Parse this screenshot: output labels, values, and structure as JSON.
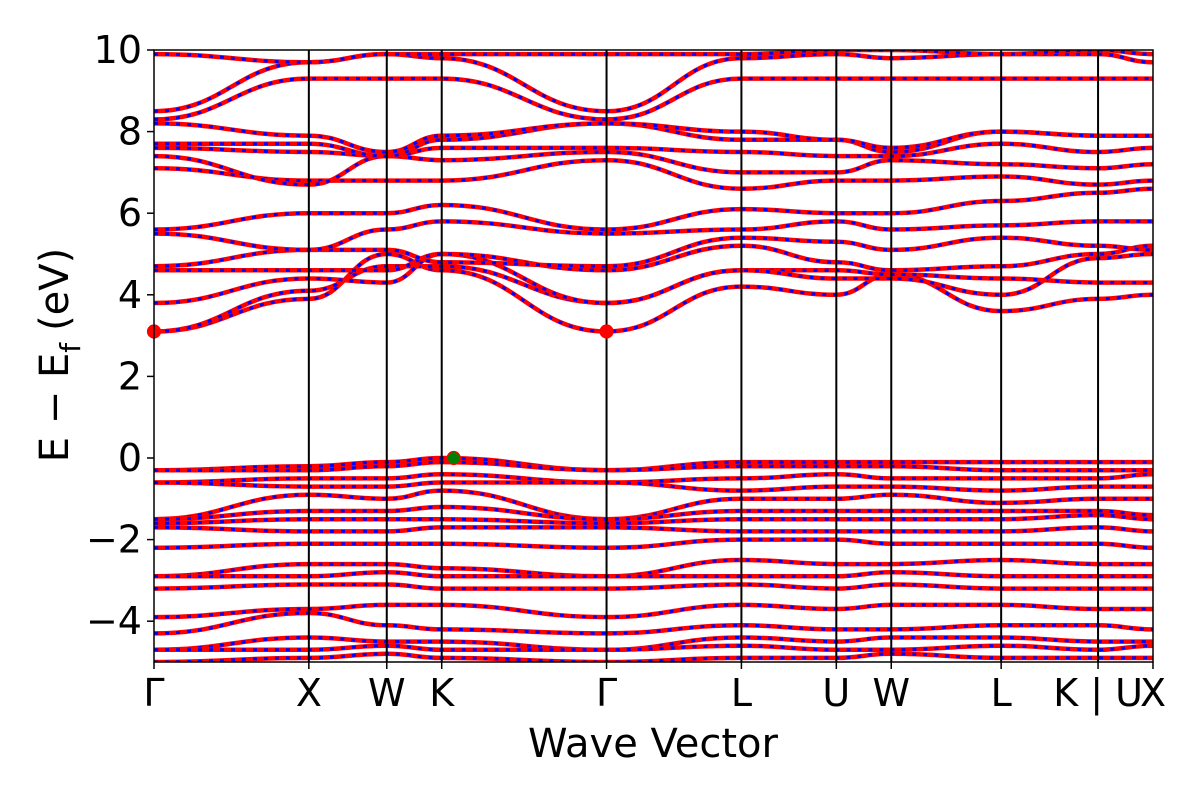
{
  "chart_data": {
    "type": "line",
    "title": "",
    "xlabel": "Wave Vector",
    "ylabel": "E − E",
    "ylabel_subscript": "f",
    "ylabel_unit": "(eV)",
    "ylim": [
      -5,
      10
    ],
    "yticks": [
      10,
      8,
      6,
      4,
      2,
      0,
      -2,
      -4
    ],
    "ytick_labels": [
      "10",
      "8",
      "6",
      "4",
      "2",
      "0",
      "−2",
      "−4"
    ],
    "xlim": [
      0,
      10
    ],
    "kpoints": [
      {
        "label": "Γ",
        "x": 0.0
      },
      {
        "label": "X",
        "x": 1.55
      },
      {
        "label": "W",
        "x": 2.33
      },
      {
        "label": "K",
        "x": 2.88
      },
      {
        "label": "Γ",
        "x": 4.53
      },
      {
        "label": "L",
        "x": 5.88
      },
      {
        "label": "U",
        "x": 6.83
      },
      {
        "label": "W",
        "x": 7.38
      },
      {
        "label": "L",
        "x": 8.48
      },
      {
        "label": "K | U",
        "x": 9.45
      },
      {
        "label": "X",
        "x": 10.0
      }
    ],
    "band_colors": {
      "primary": "#ff0000",
      "dash": "#0000ff"
    },
    "conduction_bands": [
      {
        "values": [
          3.1,
          3.9,
          5.0,
          4.6,
          3.1,
          4.2,
          4.0,
          4.5,
          3.6,
          3.9,
          4.0
        ]
      },
      {
        "values": [
          3.1,
          4.1,
          4.7,
          4.7,
          3.8,
          4.6,
          4.6,
          4.5,
          4.4,
          4.3,
          4.3
        ]
      },
      {
        "values": [
          3.8,
          4.4,
          4.3,
          5.0,
          3.8,
          4.6,
          4.4,
          4.4,
          4.0,
          4.9,
          5.0
        ]
      },
      {
        "values": [
          4.6,
          4.6,
          4.6,
          5.0,
          4.6,
          5.2,
          4.8,
          4.6,
          4.7,
          5.0,
          5.2
        ]
      },
      {
        "values": [
          4.7,
          5.1,
          5.1,
          4.8,
          4.7,
          5.4,
          5.3,
          5.1,
          5.4,
          5.2,
          5.1
        ]
      },
      {
        "values": [
          5.5,
          5.1,
          5.6,
          5.8,
          5.5,
          5.6,
          5.8,
          5.6,
          5.7,
          5.8,
          5.8
        ]
      },
      {
        "values": [
          5.6,
          6.0,
          6.0,
          6.2,
          5.6,
          6.1,
          6.0,
          6.0,
          6.3,
          6.5,
          6.6
        ]
      },
      {
        "values": [
          7.1,
          6.8,
          6.8,
          6.8,
          7.3,
          6.6,
          6.8,
          6.8,
          6.9,
          6.7,
          6.8
        ]
      },
      {
        "values": [
          7.4,
          6.7,
          7.4,
          7.3,
          7.5,
          7.0,
          7.0,
          7.3,
          7.2,
          7.1,
          7.2
        ]
      },
      {
        "values": [
          7.6,
          7.5,
          7.4,
          7.6,
          7.6,
          7.5,
          7.4,
          7.4,
          7.7,
          7.5,
          7.6
        ]
      },
      {
        "values": [
          7.7,
          7.7,
          7.4,
          7.8,
          8.2,
          7.8,
          7.8,
          7.5,
          8.0,
          7.9,
          7.9
        ]
      },
      {
        "values": [
          8.2,
          7.9,
          7.5,
          7.9,
          8.2,
          8.0,
          7.8,
          7.6,
          8.0,
          7.9,
          7.9
        ]
      },
      {
        "values": [
          8.5,
          9.7,
          9.9,
          9.8,
          8.5,
          9.8,
          9.9,
          9.8,
          9.9,
          9.9,
          9.7
        ]
      },
      {
        "values": [
          8.3,
          9.3,
          9.3,
          9.3,
          8.3,
          9.3,
          9.3,
          9.3,
          9.3,
          9.3,
          9.3
        ]
      },
      {
        "values": [
          9.9,
          9.7,
          9.9,
          9.9,
          9.9,
          9.9,
          10.0,
          10.0,
          9.9,
          10.0,
          9.9
        ]
      }
    ],
    "valence_bands": [
      {
        "values": [
          -0.3,
          -0.2,
          -0.1,
          0.0,
          -0.3,
          -0.1,
          -0.1,
          -0.1,
          -0.1,
          -0.1,
          -0.1
        ]
      },
      {
        "values": [
          -0.3,
          -0.3,
          -0.2,
          -0.1,
          -0.3,
          -0.2,
          -0.2,
          -0.2,
          -0.3,
          -0.3,
          -0.3
        ]
      },
      {
        "values": [
          -0.6,
          -0.5,
          -0.5,
          -0.4,
          -0.6,
          -0.5,
          -0.4,
          -0.5,
          -0.5,
          -0.5,
          -0.4
        ]
      },
      {
        "values": [
          -0.6,
          -0.7,
          -0.7,
          -0.6,
          -0.6,
          -0.8,
          -0.7,
          -0.7,
          -0.8,
          -0.7,
          -0.7
        ]
      },
      {
        "values": [
          -1.5,
          -0.9,
          -1.0,
          -0.8,
          -1.5,
          -1.0,
          -1.0,
          -0.9,
          -1.1,
          -1.0,
          -1.0
        ]
      },
      {
        "values": [
          -1.5,
          -1.3,
          -1.3,
          -1.2,
          -1.5,
          -1.3,
          -1.3,
          -1.3,
          -1.3,
          -1.3,
          -1.4
        ]
      },
      {
        "values": [
          -1.6,
          -1.5,
          -1.5,
          -1.5,
          -1.6,
          -1.5,
          -1.5,
          -1.5,
          -1.5,
          -1.4,
          -1.5
        ]
      },
      {
        "values": [
          -1.7,
          -1.8,
          -1.8,
          -1.7,
          -1.7,
          -1.8,
          -1.8,
          -1.8,
          -1.8,
          -1.7,
          -1.8
        ]
      },
      {
        "values": [
          -2.2,
          -2.1,
          -2.1,
          -2.1,
          -2.2,
          -2.0,
          -2.0,
          -2.1,
          -2.1,
          -2.1,
          -2.2
        ]
      },
      {
        "values": [
          -2.9,
          -2.6,
          -2.6,
          -2.7,
          -2.9,
          -2.5,
          -2.6,
          -2.6,
          -2.5,
          -2.6,
          -2.6
        ]
      },
      {
        "values": [
          -2.9,
          -2.9,
          -2.8,
          -2.9,
          -2.9,
          -2.9,
          -2.9,
          -2.8,
          -2.9,
          -2.9,
          -2.9
        ]
      },
      {
        "values": [
          -3.2,
          -3.1,
          -3.1,
          -3.2,
          -3.2,
          -3.1,
          -3.2,
          -3.1,
          -3.2,
          -3.2,
          -3.2
        ]
      },
      {
        "values": [
          -3.9,
          -3.7,
          -3.6,
          -3.6,
          -3.9,
          -3.6,
          -3.7,
          -3.6,
          -3.6,
          -3.7,
          -3.7
        ]
      },
      {
        "values": [
          -4.3,
          -3.8,
          -4.1,
          -4.2,
          -4.3,
          -4.1,
          -4.2,
          -4.2,
          -4.1,
          -4.1,
          -4.2
        ]
      },
      {
        "values": [
          -4.7,
          -4.4,
          -4.5,
          -4.5,
          -4.7,
          -4.4,
          -4.5,
          -4.4,
          -4.4,
          -4.5,
          -4.5
        ]
      },
      {
        "values": [
          -4.7,
          -4.7,
          -4.6,
          -4.7,
          -4.7,
          -4.6,
          -4.7,
          -4.7,
          -4.6,
          -4.7,
          -4.6
        ]
      },
      {
        "values": [
          -5.0,
          -4.9,
          -4.8,
          -4.9,
          -5.0,
          -4.9,
          -4.9,
          -4.8,
          -4.9,
          -4.9,
          -4.9
        ]
      }
    ],
    "markers": [
      {
        "name": "cbm",
        "x": 0.0,
        "y": 3.1,
        "color": "#ff0000"
      },
      {
        "name": "cbm",
        "x": 4.53,
        "y": 3.1,
        "color": "#ff0000"
      },
      {
        "name": "vbm",
        "x": 3.0,
        "y": 0.0,
        "color": "#008000"
      }
    ],
    "grid": false,
    "legend": "none"
  }
}
